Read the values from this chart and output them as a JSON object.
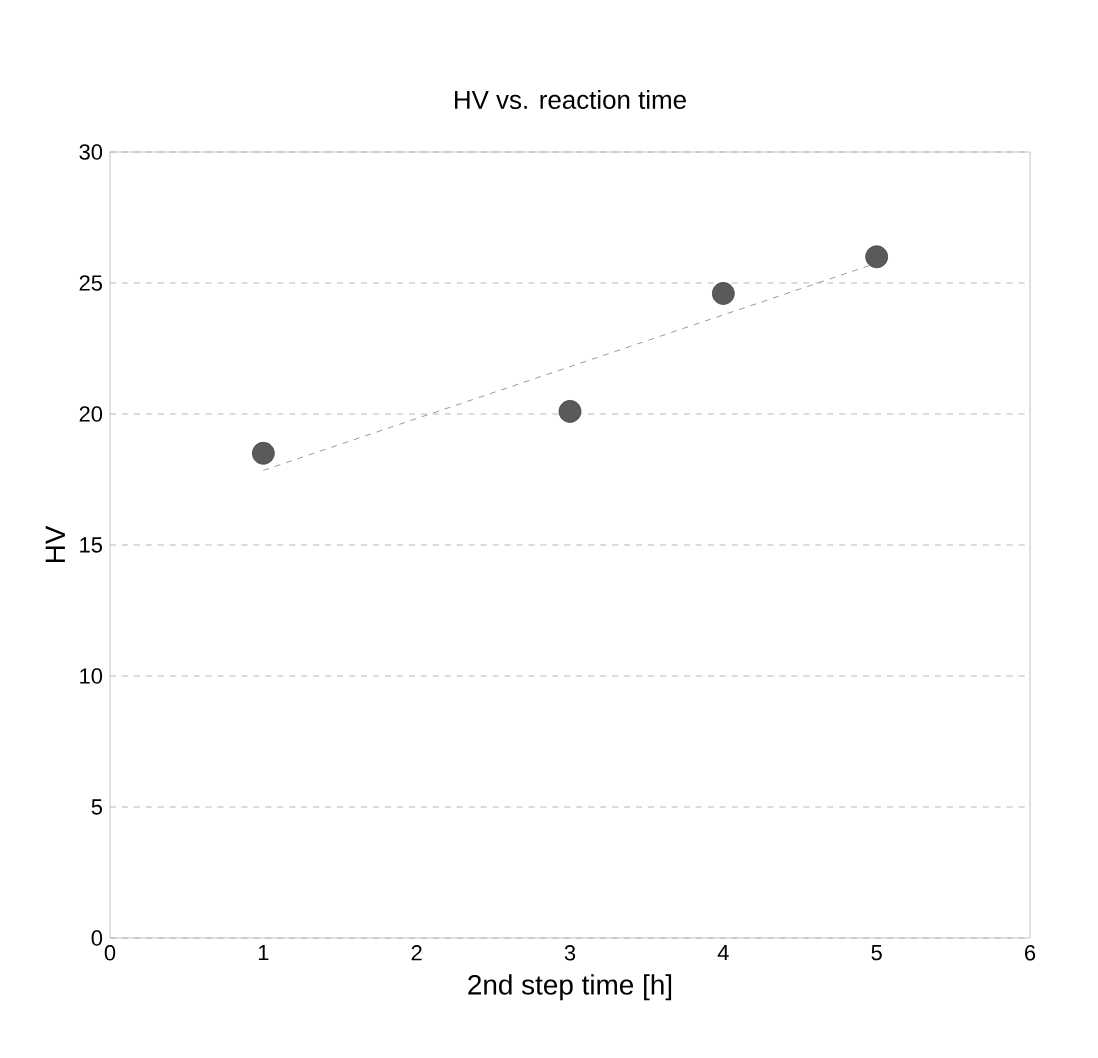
{
  "chart_data": {
    "type": "scatter",
    "title": "HV vs. reaction time",
    "xlabel": "2nd step time  [h]",
    "ylabel": "HV",
    "x": [
      1,
      3,
      4,
      5
    ],
    "series": [
      {
        "type": "scatter",
        "color": "#5a5a5a",
        "values": [
          18.5,
          20.1,
          24.6,
          26.0
        ],
        "marker": "circle"
      },
      {
        "type": "line",
        "color": "#808080",
        "x": [
          1,
          5
        ],
        "values": [
          17.85,
          25.76
        ],
        "line_style": "dashed",
        "marker": "none"
      }
    ],
    "xlim": [
      0,
      6
    ],
    "ylim": [
      0,
      30
    ],
    "xticks": [
      0,
      1,
      2,
      3,
      4,
      5,
      6
    ],
    "yticks": [
      0,
      5,
      10,
      15,
      20,
      25,
      30
    ],
    "grid": "y"
  }
}
